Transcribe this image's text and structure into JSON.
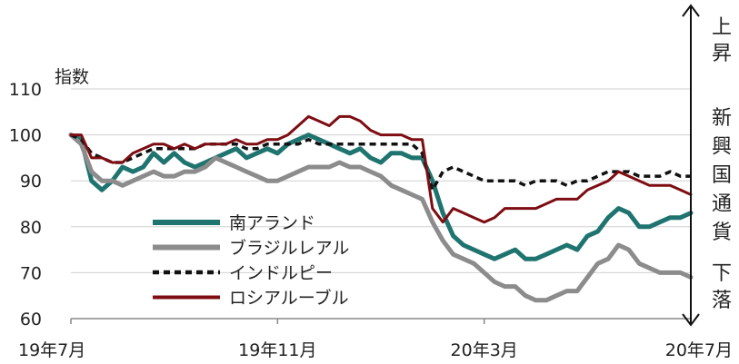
{
  "chart_data": {
    "type": "line",
    "ylabel": "指数",
    "ylim": [
      60,
      110
    ],
    "yticks": [
      "60",
      "70",
      "80",
      "90",
      "100",
      "110"
    ],
    "xticks": [
      "19年7月",
      "19年11月",
      "20年3月",
      "20年7月"
    ],
    "x": [
      0,
      6,
      12,
      18,
      24,
      30,
      36,
      42,
      48,
      54,
      60,
      66,
      72,
      78,
      84,
      90,
      96,
      102,
      108,
      114,
      120,
      126,
      132,
      138,
      144,
      150,
      156,
      162,
      168,
      174,
      180,
      186,
      192,
      198,
      204,
      210,
      216,
      222,
      228,
      234,
      240,
      246,
      252,
      258,
      264,
      270,
      276,
      282,
      288,
      294,
      300,
      306,
      312,
      318,
      324,
      330,
      336,
      342,
      348,
      354,
      360
    ],
    "grid": true,
    "side_labels": {
      "up": "上昇",
      "middle": "新興国通貨",
      "down": "下落"
    },
    "series": [
      {
        "name": "南アランド",
        "color": "#1f7470",
        "dash": "solid",
        "width": 5,
        "values": [
          100,
          99,
          90,
          88,
          90,
          93,
          92,
          93,
          96,
          94,
          96,
          94,
          93,
          94,
          95,
          96,
          97,
          95,
          96,
          97,
          96,
          98,
          99,
          100,
          99,
          98,
          97,
          96,
          97,
          95,
          94,
          96,
          96,
          95,
          95,
          90,
          83,
          78,
          76,
          75,
          74,
          73,
          74,
          75,
          73,
          73,
          74,
          75,
          76,
          75,
          78,
          79,
          82,
          84,
          83,
          80,
          80,
          81,
          82,
          82,
          83
        ]
      },
      {
        "name": "ブラジルレアル",
        "color": "#8c8c8c",
        "dash": "solid",
        "width": 5,
        "values": [
          100,
          98,
          92,
          90,
          90,
          89,
          90,
          91,
          92,
          91,
          91,
          92,
          92,
          93,
          95,
          94,
          93,
          92,
          91,
          90,
          90,
          91,
          92,
          93,
          93,
          93,
          94,
          93,
          93,
          92,
          91,
          89,
          88,
          87,
          86,
          81,
          77,
          74,
          73,
          72,
          70,
          68,
          67,
          67,
          65,
          64,
          64,
          65,
          66,
          66,
          69,
          72,
          73,
          76,
          75,
          72,
          71,
          70,
          70,
          70,
          69
        ]
      },
      {
        "name": "インドルピー",
        "color": "#111111",
        "dash": "dashed",
        "width": 3.5,
        "values": [
          100,
          99,
          96,
          95,
          94,
          94,
          95,
          96,
          97,
          97,
          97,
          97,
          97,
          98,
          98,
          98,
          98,
          97,
          97,
          98,
          98,
          98,
          98,
          99,
          98,
          98,
          98,
          98,
          98,
          98,
          98,
          98,
          98,
          98,
          96,
          88,
          92,
          93,
          92,
          91,
          90,
          90,
          90,
          90,
          89,
          90,
          90,
          90,
          89,
          90,
          90,
          91,
          92,
          92,
          92,
          91,
          91,
          91,
          92,
          91,
          91
        ]
      },
      {
        "name": "ロシアルーブル",
        "color": "#7d0d12",
        "dash": "solid",
        "width": 3,
        "values": [
          100,
          100,
          95,
          95,
          94,
          94,
          96,
          97,
          98,
          98,
          97,
          98,
          97,
          98,
          98,
          98,
          99,
          98,
          98,
          99,
          99,
          100,
          102,
          104,
          103,
          102,
          104,
          104,
          103,
          101,
          100,
          100,
          100,
          99,
          99,
          84,
          81,
          84,
          83,
          82,
          81,
          82,
          84,
          84,
          84,
          84,
          85,
          86,
          86,
          86,
          88,
          89,
          90,
          92,
          91,
          90,
          89,
          89,
          89,
          88,
          87
        ]
      }
    ]
  }
}
